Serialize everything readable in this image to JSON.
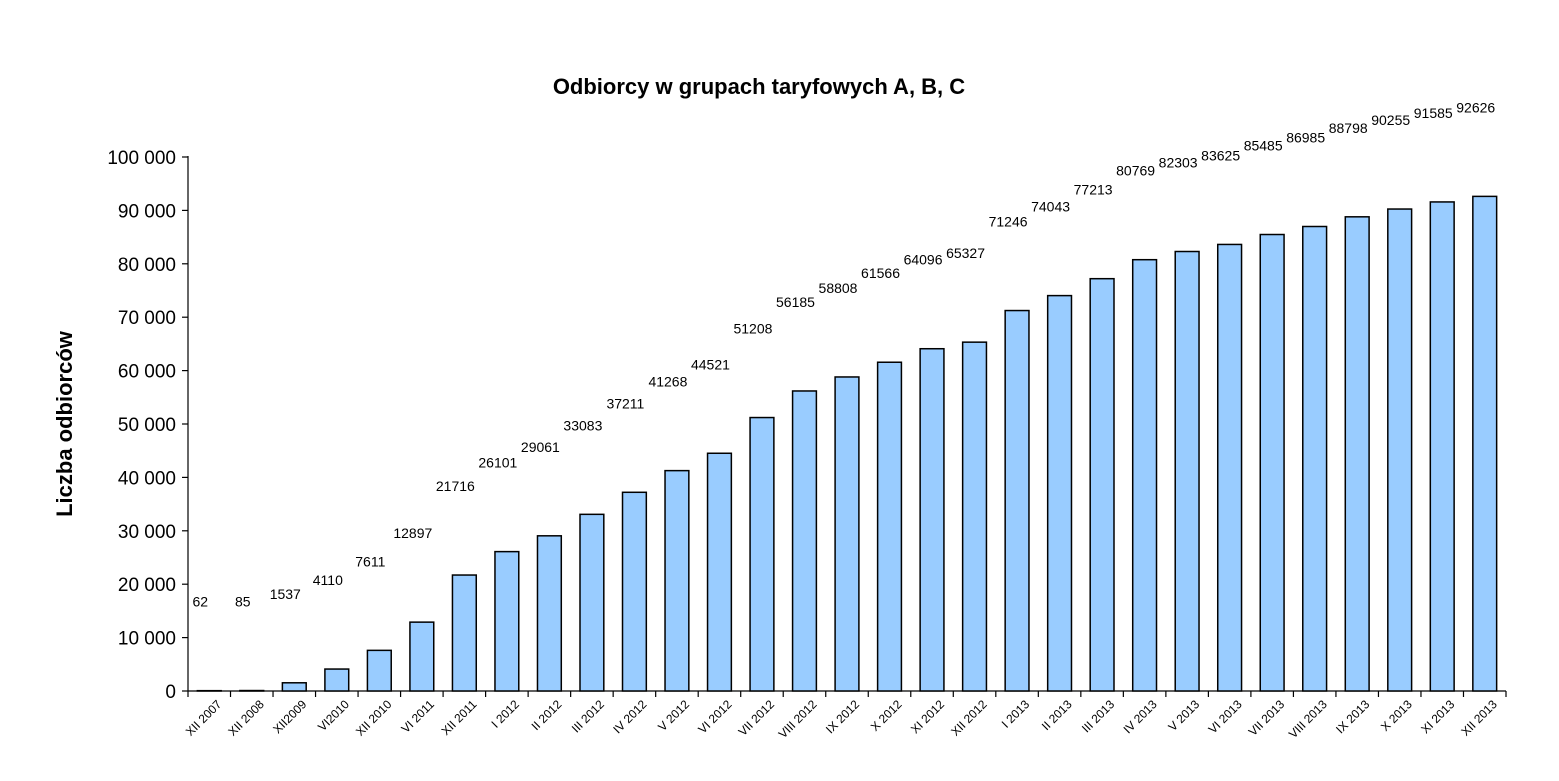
{
  "chart_data": {
    "type": "bar",
    "title": "Odbiorcy w grupach taryfowych A, B, C",
    "xlabel": "",
    "ylabel": "Liczba odbiorców",
    "ylim": [
      0,
      100000
    ],
    "ytick_values": [
      0,
      10000,
      20000,
      30000,
      40000,
      50000,
      60000,
      70000,
      80000,
      90000,
      100000
    ],
    "ytick_labels": [
      "0",
      "10 000",
      "20 000",
      "30 000",
      "40 000",
      "50 000",
      "60 000",
      "70 000",
      "80 000",
      "90 000",
      "100 000"
    ],
    "grid": false,
    "legend": "none",
    "bar_color": "#99CCFF",
    "bar_edge_color": "#000000",
    "categories": [
      "XII 2007",
      "XII 2008",
      "XII2009",
      "VI2010",
      "XII 2010",
      "VI 2011",
      "XII 2011",
      "I 2012",
      "II 2012",
      "III 2012",
      "IV 2012",
      "V 2012",
      "VI 2012",
      "VII 2012",
      "VIII 2012",
      "IX 2012",
      "X 2012",
      "XI 2012",
      "XII 2012",
      "I 2013",
      "II 2013",
      "III 2013",
      "IV 2013",
      "V 2013",
      "VI 2013",
      "VII 2013",
      "VIII 2013",
      "IX 2013",
      "X 2013",
      "XI 2013",
      "XII 2013"
    ],
    "values": [
      62,
      85,
      1537,
      4110,
      7611,
      12897,
      21716,
      26101,
      29061,
      33083,
      37211,
      41268,
      44521,
      51208,
      56185,
      58808,
      61566,
      64096,
      65327,
      71246,
      74043,
      77213,
      80769,
      82303,
      83625,
      85485,
      86985,
      88798,
      90255,
      91585,
      92626
    ],
    "data_labels": [
      "62",
      "85",
      "1537",
      "4110",
      "7611",
      "12897",
      "21716",
      "26101",
      "29061",
      "33083",
      "37211",
      "41268",
      "44521",
      "51208",
      "56185",
      "58808",
      "61566",
      "64096",
      "65327",
      "71246",
      "74043",
      "77213",
      "80769",
      "82303",
      "83625",
      "85485",
      "86985",
      "88798",
      "90255",
      "91585",
      "92626"
    ]
  }
}
